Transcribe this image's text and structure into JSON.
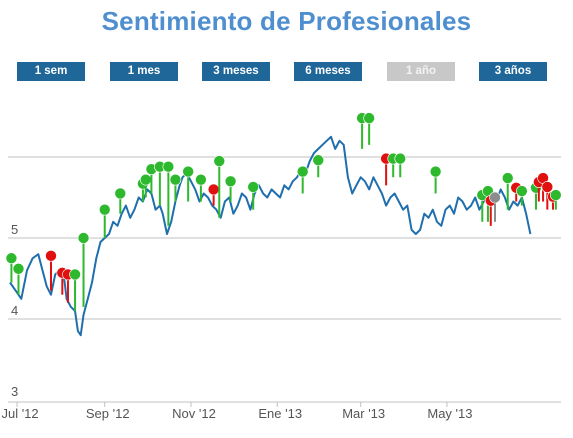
{
  "title": "Sentimiento de Profesionales",
  "range_buttons": [
    {
      "label": "1 sem",
      "enabled": true
    },
    {
      "label": "1 mes",
      "enabled": true
    },
    {
      "label": "3 meses",
      "enabled": true
    },
    {
      "label": "6 meses",
      "enabled": true
    },
    {
      "label": "1 año",
      "enabled": false
    },
    {
      "label": "3 años",
      "enabled": true
    }
  ],
  "colors": {
    "title": "#4f8fcf",
    "button": "#1f6699",
    "button_disabled": "#c8c8c8",
    "line": "#1f6fae",
    "grid": "#c0c0c0",
    "marker_green": "#2eb82e",
    "marker_red": "#e01010",
    "marker_gray": "#8c8c8c"
  },
  "chart_data": {
    "type": "line",
    "title": "Sentimiento de Profesionales",
    "xlabel": "",
    "ylabel": "",
    "ylim": [
      3,
      6.3
    ],
    "yticks": [
      3,
      4,
      5
    ],
    "grid": true,
    "x_ticks": [
      {
        "label": "Jul '12",
        "day": 5
      },
      {
        "label": "Sep '12",
        "day": 67
      },
      {
        "label": "Nov '12",
        "day": 128
      },
      {
        "label": "Ene '13",
        "day": 189
      },
      {
        "label": "Mar '13",
        "day": 248
      },
      {
        "label": "May '13",
        "day": 309
      }
    ],
    "xlim": [
      0,
      369
    ],
    "series": [
      {
        "values": [
          [
            0,
            4.45
          ],
          [
            4,
            4.35
          ],
          [
            8,
            4.25
          ],
          [
            12,
            4.6
          ],
          [
            16,
            4.75
          ],
          [
            20,
            4.8
          ],
          [
            23,
            4.6
          ],
          [
            26,
            4.4
          ],
          [
            29,
            4.3
          ],
          [
            32,
            4.55
          ],
          [
            35,
            4.6
          ],
          [
            38,
            4.55
          ],
          [
            40,
            4.25
          ],
          [
            43,
            4.15
          ],
          [
            46,
            4.1
          ],
          [
            48,
            3.85
          ],
          [
            50,
            3.8
          ],
          [
            52,
            4.05
          ],
          [
            55,
            4.25
          ],
          [
            58,
            4.45
          ],
          [
            61,
            4.75
          ],
          [
            64,
            4.95
          ],
          [
            67,
            5.0
          ],
          [
            70,
            5.05
          ],
          [
            73,
            5.2
          ],
          [
            76,
            5.15
          ],
          [
            79,
            5.3
          ],
          [
            82,
            5.4
          ],
          [
            85,
            5.25
          ],
          [
            88,
            5.35
          ],
          [
            91,
            5.5
          ],
          [
            94,
            5.45
          ],
          [
            97,
            5.6
          ],
          [
            100,
            5.55
          ],
          [
            103,
            5.35
          ],
          [
            106,
            5.4
          ],
          [
            108,
            5.3
          ],
          [
            111,
            5.05
          ],
          [
            114,
            5.2
          ],
          [
            117,
            5.45
          ],
          [
            120,
            5.65
          ],
          [
            122,
            5.75
          ],
          [
            125,
            5.8
          ],
          [
            128,
            5.7
          ],
          [
            131,
            5.6
          ],
          [
            134,
            5.45
          ],
          [
            137,
            5.55
          ],
          [
            140,
            5.5
          ],
          [
            143,
            5.4
          ],
          [
            146,
            5.35
          ],
          [
            149,
            5.25
          ],
          [
            152,
            5.45
          ],
          [
            155,
            5.5
          ],
          [
            158,
            5.3
          ],
          [
            161,
            5.4
          ],
          [
            164,
            5.55
          ],
          [
            167,
            5.5
          ],
          [
            170,
            5.35
          ],
          [
            173,
            5.55
          ],
          [
            176,
            5.65
          ],
          [
            179,
            5.55
          ],
          [
            182,
            5.5
          ],
          [
            185,
            5.6
          ],
          [
            188,
            5.55
          ],
          [
            191,
            5.5
          ],
          [
            194,
            5.65
          ],
          [
            197,
            5.6
          ],
          [
            200,
            5.7
          ],
          [
            203,
            5.75
          ],
          [
            206,
            5.85
          ],
          [
            209,
            5.8
          ],
          [
            212,
            5.95
          ],
          [
            215,
            6.05
          ],
          [
            218,
            6.1
          ],
          [
            221,
            6.15
          ],
          [
            224,
            6.2
          ],
          [
            227,
            6.25
          ],
          [
            230,
            6.1
          ],
          [
            233,
            6.2
          ],
          [
            236,
            6.15
          ],
          [
            239,
            5.75
          ],
          [
            242,
            5.55
          ],
          [
            245,
            5.65
          ],
          [
            248,
            5.75
          ],
          [
            251,
            5.7
          ],
          [
            254,
            5.6
          ],
          [
            257,
            5.75
          ],
          [
            260,
            5.65
          ],
          [
            263,
            5.55
          ],
          [
            266,
            5.4
          ],
          [
            269,
            5.5
          ],
          [
            272,
            5.55
          ],
          [
            275,
            5.45
          ],
          [
            278,
            5.35
          ],
          [
            281,
            5.4
          ],
          [
            284,
            5.1
          ],
          [
            287,
            5.05
          ],
          [
            290,
            5.1
          ],
          [
            293,
            5.3
          ],
          [
            296,
            5.25
          ],
          [
            299,
            5.35
          ],
          [
            302,
            5.2
          ],
          [
            305,
            5.15
          ],
          [
            308,
            5.35
          ],
          [
            311,
            5.4
          ],
          [
            314,
            5.3
          ],
          [
            317,
            5.5
          ],
          [
            320,
            5.45
          ],
          [
            323,
            5.35
          ],
          [
            326,
            5.4
          ],
          [
            329,
            5.5
          ],
          [
            332,
            5.35
          ],
          [
            335,
            5.45
          ],
          [
            338,
            5.6
          ],
          [
            341,
            5.55
          ],
          [
            344,
            5.45
          ],
          [
            347,
            5.6
          ],
          [
            350,
            5.5
          ],
          [
            353,
            5.35
          ],
          [
            356,
            5.45
          ],
          [
            359,
            5.4
          ],
          [
            362,
            5.5
          ],
          [
            365,
            5.3
          ],
          [
            368,
            5.05
          ]
        ]
      }
    ],
    "markers": [
      {
        "x": 1,
        "y": 4.75,
        "base": 4.45,
        "color": "green"
      },
      {
        "x": 6,
        "y": 4.62,
        "base": 4.3,
        "color": "green"
      },
      {
        "x": 29,
        "y": 4.78,
        "base": 4.35,
        "color": "red"
      },
      {
        "x": 37,
        "y": 4.57,
        "base": 4.3,
        "color": "red"
      },
      {
        "x": 41,
        "y": 4.55,
        "base": 4.2,
        "color": "red"
      },
      {
        "x": 46,
        "y": 4.55,
        "base": 4.1,
        "color": "green"
      },
      {
        "x": 52,
        "y": 5.0,
        "base": 4.15,
        "color": "green"
      },
      {
        "x": 67,
        "y": 5.35,
        "base": 5.0,
        "color": "green"
      },
      {
        "x": 78,
        "y": 5.55,
        "base": 5.3,
        "color": "green"
      },
      {
        "x": 94,
        "y": 5.67,
        "base": 5.45,
        "color": "green"
      },
      {
        "x": 96,
        "y": 5.72,
        "base": 5.5,
        "color": "green"
      },
      {
        "x": 100,
        "y": 5.85,
        "base": 5.55,
        "color": "green"
      },
      {
        "x": 106,
        "y": 5.88,
        "base": 5.4,
        "color": "green"
      },
      {
        "x": 112,
        "y": 5.88,
        "base": 5.15,
        "color": "green"
      },
      {
        "x": 117,
        "y": 5.72,
        "base": 5.45,
        "color": "green"
      },
      {
        "x": 126,
        "y": 5.82,
        "base": 5.45,
        "color": "green"
      },
      {
        "x": 135,
        "y": 5.72,
        "base": 5.45,
        "color": "green"
      },
      {
        "x": 144,
        "y": 5.6,
        "base": 5.4,
        "color": "red"
      },
      {
        "x": 148,
        "y": 5.95,
        "base": 5.25,
        "color": "green"
      },
      {
        "x": 156,
        "y": 5.7,
        "base": 5.45,
        "color": "green"
      },
      {
        "x": 172,
        "y": 5.63,
        "base": 5.35,
        "color": "green"
      },
      {
        "x": 207,
        "y": 5.82,
        "base": 5.55,
        "color": "green"
      },
      {
        "x": 218,
        "y": 5.96,
        "base": 5.75,
        "color": "green"
      },
      {
        "x": 249,
        "y": 6.48,
        "base": 6.1,
        "color": "green"
      },
      {
        "x": 254,
        "y": 6.48,
        "base": 6.15,
        "color": "green"
      },
      {
        "x": 266,
        "y": 5.98,
        "base": 5.65,
        "color": "red"
      },
      {
        "x": 271,
        "y": 5.98,
        "base": 5.75,
        "color": "green"
      },
      {
        "x": 276,
        "y": 5.98,
        "base": 5.75,
        "color": "green"
      },
      {
        "x": 301,
        "y": 5.82,
        "base": 5.55,
        "color": "green"
      },
      {
        "x": 334,
        "y": 5.53,
        "base": 5.2,
        "color": "green"
      },
      {
        "x": 338,
        "y": 5.58,
        "base": 5.2,
        "color": "green"
      },
      {
        "x": 340,
        "y": 5.46,
        "base": 5.15,
        "color": "red"
      },
      {
        "x": 343,
        "y": 5.5,
        "base": 5.2,
        "color": "gray"
      },
      {
        "x": 352,
        "y": 5.74,
        "base": 5.35,
        "color": "green"
      },
      {
        "x": 358,
        "y": 5.62,
        "base": 5.45,
        "color": "red"
      },
      {
        "x": 362,
        "y": 5.58,
        "base": 5.4,
        "color": "green"
      },
      {
        "x": 372,
        "y": 5.62,
        "base": 5.35,
        "color": "green"
      },
      {
        "x": 374,
        "y": 5.69,
        "base": 5.45,
        "color": "red"
      },
      {
        "x": 377,
        "y": 5.74,
        "base": 5.45,
        "color": "red"
      },
      {
        "x": 380,
        "y": 5.63,
        "base": 5.35,
        "color": "red"
      },
      {
        "x": 384,
        "y": 5.51,
        "base": 5.35,
        "color": "red"
      },
      {
        "x": 386,
        "y": 5.53,
        "base": 5.35,
        "color": "green"
      }
    ]
  }
}
